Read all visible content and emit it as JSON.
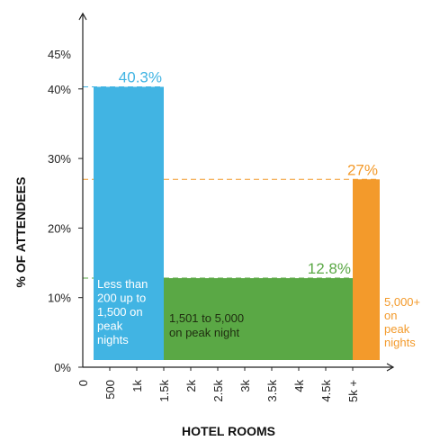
{
  "chart_data": {
    "type": "bar",
    "xlabel": "HOTEL ROOMS",
    "ylabel": "% OF ATTENDEES",
    "ylim": [
      0,
      45
    ],
    "y_ticks": [
      "0%",
      "10%",
      "20%",
      "30%",
      "40%",
      "45%"
    ],
    "y_tick_values": [
      0,
      10,
      20,
      30,
      40,
      45
    ],
    "x_ticks": [
      "0",
      "500",
      "1k",
      "1.5k",
      "2k",
      "2.5k",
      "3k",
      "3.5k",
      "4k",
      "4.5k",
      "5k +"
    ],
    "x_tick_values": [
      0,
      500,
      1000,
      1500,
      2000,
      2500,
      3000,
      3500,
      4000,
      4500,
      5000
    ],
    "xlim": [
      0,
      5500
    ],
    "grid": false,
    "reference_lines": true,
    "bars": [
      {
        "x_start": 200,
        "x_end": 1500,
        "value": 40.3,
        "value_label": "40.3%",
        "note": [
          "Less than",
          "200 up to",
          "1,500 on",
          "peak",
          "nights"
        ],
        "color": "#41b4e3",
        "label_color": "#41b4e3"
      },
      {
        "x_start": 1500,
        "x_end": 5000,
        "value": 12.8,
        "value_label": "12.8%",
        "note": [
          "1,501 to 5,000",
          "on peak night"
        ],
        "color": "#5aa845",
        "label_color": "#5aa845"
      },
      {
        "x_start": 5000,
        "x_end": 5500,
        "value": 27,
        "value_label": "27%",
        "note": [
          "5,000+",
          "on",
          "peak",
          "nights"
        ],
        "color": "#f39a2b",
        "label_color": "#f39a2b"
      }
    ]
  }
}
